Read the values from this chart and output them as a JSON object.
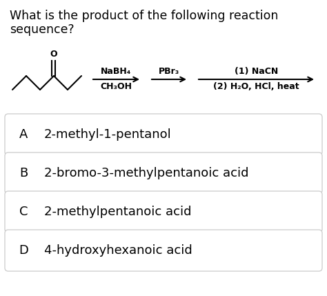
{
  "title_line1": "What is the product of the following reaction",
  "title_line2": "sequence?",
  "reagent1_top": "NaBH₄",
  "reagent1_bot": "CH₃OH",
  "reagent2_top": "PBr₃",
  "reagent3_top": "(1) NaCN",
  "reagent3_bot": "(2) H₂O, HCl, heat",
  "options": [
    {
      "label": "A",
      "text": "2-methyl-1-pentanol"
    },
    {
      "label": "B",
      "text": "2-bromo-3-methylpentanoic acid"
    },
    {
      "label": "C",
      "text": "2-methylpentanoic acid"
    },
    {
      "label": "D",
      "text": "4-hydroxyhexanoic acid"
    }
  ],
  "bg_color": "#ffffff",
  "box_facecolor": "#ffffff",
  "box_edge_color": "#d0d0d0",
  "text_color": "#000000",
  "title_fontsize": 12.5,
  "option_label_fontsize": 13,
  "option_text_fontsize": 13,
  "reagent_fontsize": 9.0
}
